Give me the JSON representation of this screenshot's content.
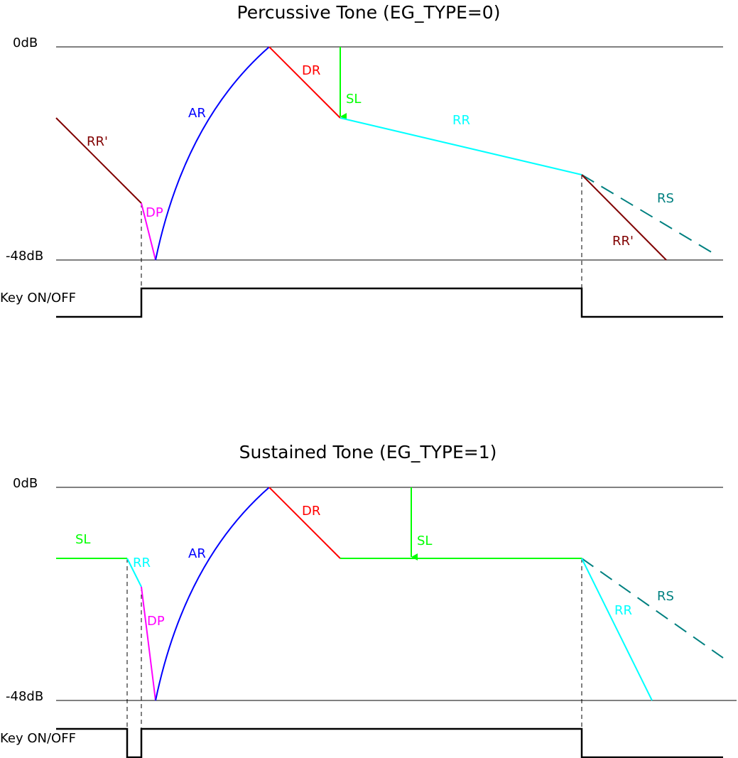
{
  "colors": {
    "rr_prime": "#800000",
    "dp": "#ff00ff",
    "ar": "#0000ff",
    "dr": "#ff0000",
    "sl": "#00ff00",
    "rr": "#00ffff",
    "rs": "#008080",
    "axis": "#000000"
  },
  "percussive": {
    "title": "Percussive Tone (EG_TYPE=0)",
    "level_top": "0dB",
    "level_bottom": "-48dB",
    "key_label": "Key ON/OFF",
    "labels": {
      "rr_prime_left": "RR'",
      "dp": "DP",
      "ar": "AR",
      "dr": "DR",
      "sl": "SL",
      "rr": "RR",
      "rs": "RS",
      "rr_prime_right": "RR'"
    }
  },
  "sustained": {
    "title": "Sustained Tone (EG_TYPE=1)",
    "level_top": "0dB",
    "level_bottom": "-48dB",
    "key_label": "Key ON/OFF",
    "labels": {
      "sl_left": "SL",
      "rr_left": "RR",
      "dp": "DP",
      "ar": "AR",
      "dr": "DR",
      "sl": "SL",
      "rr": "RR",
      "rs": "RS"
    }
  }
}
